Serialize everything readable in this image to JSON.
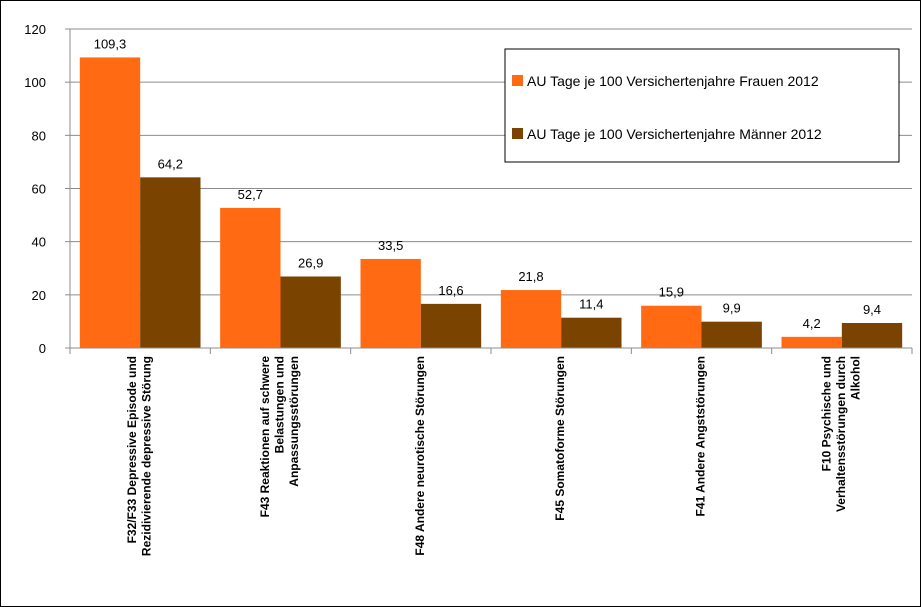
{
  "chart_data": {
    "type": "bar",
    "categories": [
      [
        "F32/F33 Depressive Episode und",
        "Rezidivierende depressive Störung"
      ],
      [
        "F43 Reaktionen auf schwere",
        "Belastungen und",
        "Anpassungsstörungen"
      ],
      [
        "F48 Andere neurotische Störungen"
      ],
      [
        "F45 Somatoforme Störungen"
      ],
      [
        "F41 Andere Angststörungen"
      ],
      [
        "F10 Psychische und",
        "Verhaltensstörungen durch",
        "Alkohol"
      ]
    ],
    "series": [
      {
        "name": "AU Tage je 100 Versichertenjahre Frauen 2012",
        "color": "#FF6A13",
        "values": [
          109.3,
          52.7,
          33.5,
          21.8,
          15.9,
          4.2
        ],
        "labels": [
          "109,3",
          "52,7",
          "33,5",
          "21,8",
          "15,9",
          "4,2"
        ]
      },
      {
        "name": "AU Tage je 100 Versichertenjahre Männer 2012",
        "color": "#7A4300",
        "values": [
          64.2,
          26.9,
          16.6,
          11.4,
          9.9,
          9.4
        ],
        "labels": [
          "64,2",
          "26,9",
          "16,6",
          "11,4",
          "9,9",
          "9,4"
        ]
      }
    ],
    "ylim": [
      0,
      120
    ],
    "yticks": [
      0,
      20,
      40,
      60,
      80,
      100,
      120
    ],
    "grid": true,
    "legend_position": "top-right",
    "title": "",
    "xlabel": "",
    "ylabel": ""
  }
}
